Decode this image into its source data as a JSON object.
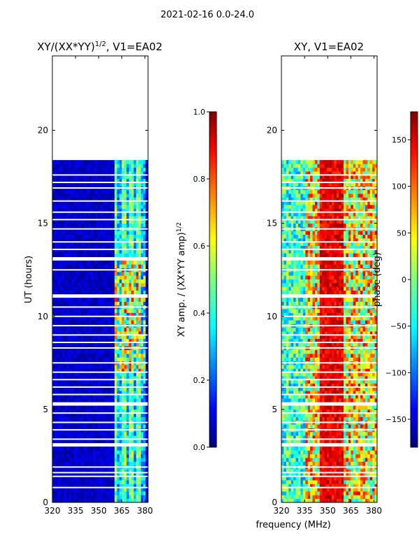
{
  "suptitle": "2021-02-16 0.0-24.0",
  "xlabel_shared": "frequency (MHz)",
  "colors": {
    "accent_dark": "#00007f",
    "accent_blue": "#0010ff",
    "gap": "#ffffff"
  },
  "chart_data": [
    {
      "type": "heatmap",
      "title_main": "XY/(XX*YY)",
      "title_sup": "1/2",
      "title_tail": ", V1=EA02",
      "ylabel": "UT (hours)",
      "xlim": [
        320,
        382
      ],
      "ylim": [
        0,
        24
      ],
      "xticks": [
        320,
        335,
        350,
        365,
        380
      ],
      "yticks": [
        0,
        5,
        10,
        15,
        20
      ],
      "active_band_mhz": [
        360,
        380
      ],
      "colorbar": {
        "label_main": "XY amp. / (XX*YY amp)",
        "label_sup": "1/2",
        "range": [
          0.0,
          1.0
        ],
        "ticks": [
          "0.0",
          "0.2",
          "0.4",
          "0.6",
          "0.8",
          "1.0"
        ]
      }
    },
    {
      "type": "heatmap",
      "title": "XY, V1=EA02",
      "xlim": [
        320,
        382
      ],
      "ylim": [
        0,
        24
      ],
      "xticks": [
        320,
        335,
        350,
        365,
        380
      ],
      "yticks": [
        0,
        5,
        10,
        15,
        20
      ],
      "colorbar": {
        "label": "phase (deg)",
        "range": [
          -180,
          180
        ],
        "ticks": [
          "150",
          "100",
          "50",
          "0",
          "−50",
          "−100",
          "−150"
        ]
      }
    }
  ],
  "data_gaps_hours": [
    [
      22.9,
      24.0
    ],
    [
      18.3,
      22.9
    ],
    [
      13.05,
      13.25
    ],
    [
      10.95,
      11.1
    ],
    [
      5.3,
      5.45
    ],
    [
      2.95,
      3.1
    ]
  ],
  "thin_gaps_hours": [
    17.6,
    17.2,
    16.9,
    16.2,
    15.6,
    15.2,
    14.7,
    14.0,
    13.6,
    12.5,
    10.5,
    10.0,
    9.5,
    9.0,
    8.6,
    8.3,
    7.5,
    7.0,
    6.6,
    6.2,
    5.8,
    4.8,
    4.3,
    3.9,
    3.4,
    1.9,
    1.6,
    1.4,
    0.8,
    23.5,
    23.2
  ]
}
